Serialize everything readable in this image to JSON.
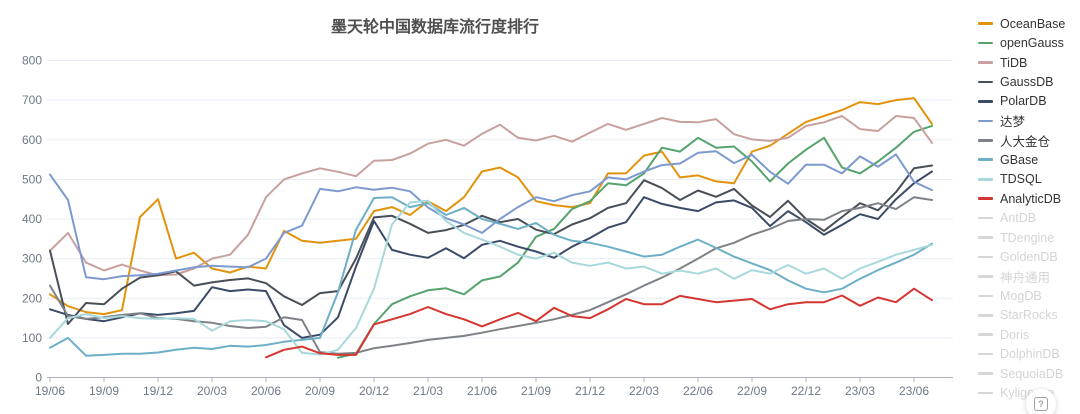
{
  "title": "墨天轮中国数据库流行度排行",
  "help_button": {
    "label": "?"
  },
  "chart_data": {
    "type": "line",
    "title": "墨天轮中国数据库流行度排行",
    "xlabel": "",
    "ylabel": "",
    "ylim": [
      0,
      800
    ],
    "grid": true,
    "legend_position": "right",
    "y_ticks": [
      0,
      100,
      200,
      300,
      400,
      500,
      600,
      700,
      800
    ],
    "x": [
      "19/06",
      "19/07",
      "19/08",
      "19/09",
      "19/10",
      "19/11",
      "19/12",
      "20/01",
      "20/02",
      "20/03",
      "20/04",
      "20/05",
      "20/06",
      "20/07",
      "20/08",
      "20/09",
      "20/10",
      "20/11",
      "20/12",
      "21/01",
      "21/02",
      "21/03",
      "21/04",
      "21/05",
      "21/06",
      "21/07",
      "21/08",
      "21/09",
      "21/10",
      "21/11",
      "21/12",
      "22/01",
      "22/02",
      "22/03",
      "22/04",
      "22/05",
      "22/06",
      "22/07",
      "22/08",
      "22/09",
      "22/10",
      "22/11",
      "22/12",
      "23/01",
      "23/02",
      "23/03",
      "23/04",
      "23/05",
      "23/06",
      "23/07"
    ],
    "x_tick_labels": [
      "19/06",
      "19/09",
      "19/12",
      "20/03",
      "20/06",
      "20/09",
      "20/12",
      "21/03",
      "21/06",
      "21/09",
      "21/12",
      "22/03",
      "22/06",
      "22/09",
      "22/12",
      "23/03",
      "23/06"
    ],
    "series": [
      {
        "name": "OceanBase",
        "color": "#E2930D",
        "values": [
          210,
          180,
          165,
          160,
          170,
          405,
          450,
          300,
          315,
          275,
          265,
          280,
          275,
          370,
          345,
          340,
          345,
          350,
          420,
          430,
          410,
          445,
          420,
          455,
          520,
          530,
          505,
          445,
          435,
          430,
          440,
          515,
          515,
          560,
          570,
          505,
          510,
          495,
          490,
          570,
          585,
          615,
          645,
          660,
          675,
          695,
          690,
          700,
          705,
          640
        ]
      },
      {
        "name": "openGauss",
        "color": "#55A36D",
        "values": [
          null,
          null,
          null,
          null,
          null,
          null,
          null,
          null,
          null,
          null,
          null,
          null,
          null,
          null,
          null,
          null,
          50,
          60,
          135,
          185,
          205,
          220,
          225,
          210,
          245,
          255,
          290,
          355,
          375,
          425,
          445,
          490,
          485,
          515,
          580,
          570,
          605,
          580,
          583,
          545,
          495,
          540,
          575,
          605,
          530,
          515,
          545,
          580,
          620,
          635
        ]
      },
      {
        "name": "TiDB",
        "color": "#C8A19E",
        "values": [
          320,
          365,
          290,
          270,
          285,
          270,
          258,
          260,
          275,
          300,
          310,
          360,
          455,
          500,
          515,
          528,
          519,
          508,
          547,
          549,
          565,
          590,
          600,
          585,
          615,
          638,
          605,
          598,
          610,
          595,
          618,
          640,
          625,
          640,
          655,
          645,
          644,
          652,
          614,
          601,
          597,
          605,
          635,
          644,
          660,
          627,
          622,
          660,
          655,
          592
        ]
      },
      {
        "name": "GaussDB",
        "color": "#494F57",
        "values": [
          320,
          135,
          188,
          185,
          224,
          252,
          258,
          268,
          232,
          240,
          246,
          250,
          238,
          205,
          183,
          213,
          218,
          300,
          404,
          408,
          388,
          365,
          372,
          385,
          408,
          392,
          400,
          373,
          362,
          386,
          402,
          428,
          440,
          498,
          478,
          448,
          472,
          456,
          476,
          434,
          405,
          446,
          400,
          370,
          405,
          440,
          422,
          468,
          528,
          535
        ]
      },
      {
        "name": "PolarDB",
        "color": "#3B4A66",
        "values": [
          172,
          158,
          148,
          142,
          152,
          162,
          158,
          162,
          168,
          228,
          218,
          222,
          218,
          132,
          100,
          108,
          152,
          280,
          395,
          322,
          310,
          302,
          326,
          301,
          335,
          345,
          330,
          318,
          302,
          330,
          352,
          378,
          392,
          455,
          438,
          428,
          420,
          442,
          447,
          428,
          382,
          420,
          392,
          360,
          385,
          412,
          400,
          450,
          490,
          520
        ]
      },
      {
        "name": "达梦",
        "color": "#7C9AD0",
        "values": [
          512,
          448,
          253,
          248,
          256,
          258,
          262,
          270,
          278,
          282,
          280,
          278,
          300,
          365,
          383,
          476,
          470,
          480,
          474,
          479,
          470,
          429,
          402,
          386,
          365,
          400,
          430,
          455,
          445,
          460,
          470,
          505,
          500,
          520,
          536,
          540,
          567,
          571,
          541,
          562,
          519,
          489,
          537,
          537,
          515,
          558,
          532,
          563,
          494,
          473
        ]
      },
      {
        "name": "人大金仓",
        "color": "#7E8287",
        "values": [
          232,
          155,
          148,
          152,
          158,
          162,
          150,
          148,
          142,
          138,
          130,
          125,
          128,
          152,
          145,
          64,
          60,
          62,
          74,
          80,
          87,
          95,
          100,
          105,
          113,
          122,
          130,
          138,
          147,
          158,
          170,
          190,
          210,
          232,
          252,
          275,
          300,
          326,
          340,
          360,
          375,
          395,
          400,
          398,
          420,
          428,
          440,
          425,
          455,
          448
        ]
      },
      {
        "name": "GBase",
        "color": "#6DAFC6",
        "values": [
          75,
          100,
          55,
          57,
          60,
          60,
          63,
          70,
          75,
          72,
          80,
          78,
          82,
          90,
          95,
          100,
          215,
          373,
          453,
          455,
          430,
          440,
          410,
          428,
          400,
          388,
          375,
          390,
          360,
          345,
          340,
          330,
          318,
          305,
          310,
          330,
          348,
          327,
          305,
          288,
          271,
          245,
          224,
          215,
          224,
          249,
          271,
          290,
          310,
          338
        ]
      },
      {
        "name": "TDSQL",
        "color": "#A8D8DC",
        "values": [
          100,
          150,
          160,
          150,
          155,
          150,
          148,
          150,
          148,
          118,
          142,
          145,
          142,
          122,
          62,
          58,
          70,
          125,
          224,
          386,
          442,
          446,
          395,
          365,
          348,
          330,
          310,
          300,
          315,
          290,
          282,
          290,
          275,
          280,
          262,
          270,
          262,
          275,
          249,
          271,
          262,
          284,
          262,
          275,
          249,
          275,
          292,
          310,
          322,
          335
        ]
      },
      {
        "name": "AnalyticDB",
        "color": "#D53631",
        "values": [
          null,
          null,
          null,
          null,
          null,
          null,
          null,
          null,
          null,
          null,
          null,
          null,
          51,
          70,
          78,
          61,
          57,
          57,
          134,
          147,
          160,
          178,
          160,
          147,
          129,
          147,
          163,
          142,
          176,
          155,
          150,
          172,
          198,
          185,
          185,
          206,
          198,
          190,
          194,
          198,
          172,
          185,
          190,
          190,
          207,
          181,
          202,
          190,
          224,
          195
        ]
      }
    ]
  },
  "legend": {
    "items": [
      {
        "label": "OceanBase",
        "color": "#E2930D",
        "active": true
      },
      {
        "label": "openGauss",
        "color": "#55A36D",
        "active": true
      },
      {
        "label": "TiDB",
        "color": "#C8A19E",
        "active": true
      },
      {
        "label": "GaussDB",
        "color": "#494F57",
        "active": true
      },
      {
        "label": "PolarDB",
        "color": "#3B4A66",
        "active": true
      },
      {
        "label": "达梦",
        "color": "#7C9AD0",
        "active": true
      },
      {
        "label": "人大金仓",
        "color": "#7E8287",
        "active": true
      },
      {
        "label": "GBase",
        "color": "#6DAFC6",
        "active": true
      },
      {
        "label": "TDSQL",
        "color": "#A8D8DC",
        "active": true
      },
      {
        "label": "AnalyticDB",
        "color": "#D53631",
        "active": true
      },
      {
        "label": "AntDB",
        "color": "#D6D6D6",
        "active": false
      },
      {
        "label": "TDengine",
        "color": "#D6D6D6",
        "active": false
      },
      {
        "label": "GoldenDB",
        "color": "#D6D6D6",
        "active": false
      },
      {
        "label": "神舟通用",
        "color": "#D6D6D6",
        "active": false
      },
      {
        "label": "MogDB",
        "color": "#D6D6D6",
        "active": false
      },
      {
        "label": "StarRocks",
        "color": "#D6D6D6",
        "active": false
      },
      {
        "label": "Doris",
        "color": "#D6D6D6",
        "active": false
      },
      {
        "label": "DolphinDB",
        "color": "#D6D6D6",
        "active": false
      },
      {
        "label": "SequoiaDB",
        "color": "#D6D6D6",
        "active": false
      },
      {
        "label": "Kyligence",
        "color": "#D6D6D6",
        "active": false
      }
    ]
  }
}
